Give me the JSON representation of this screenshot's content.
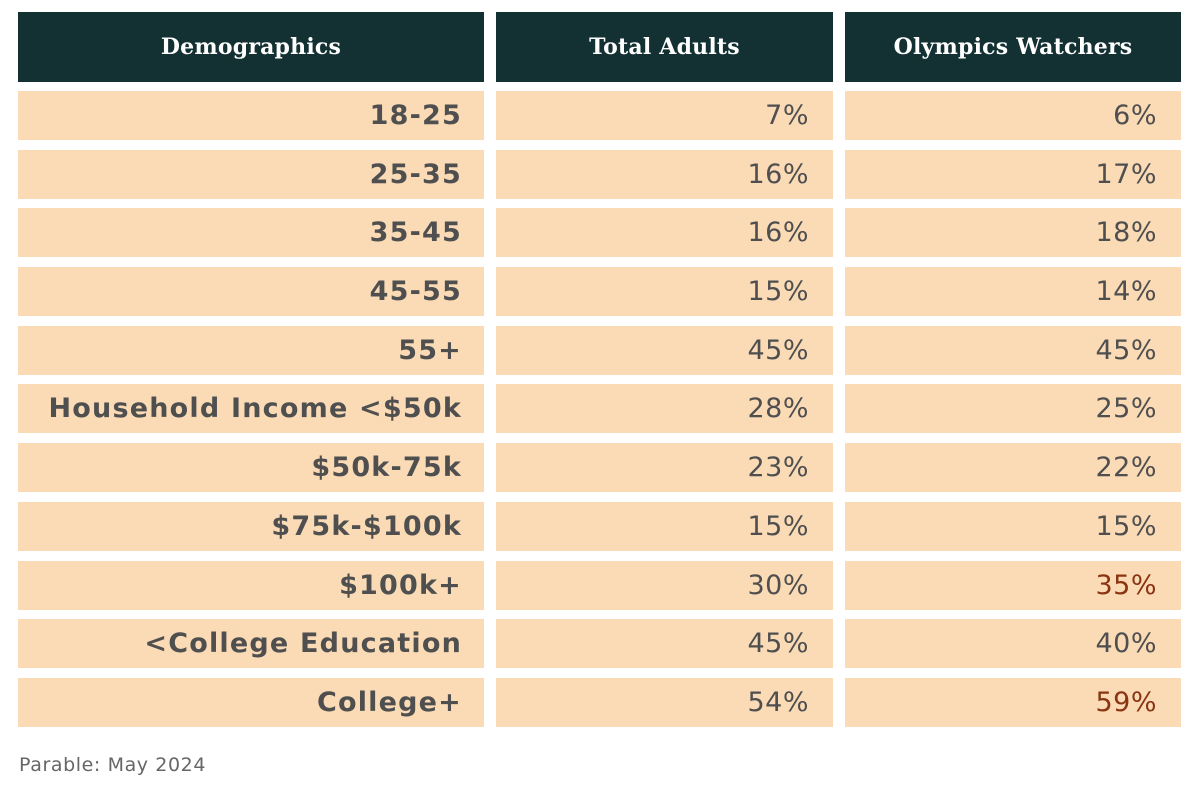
{
  "chart_data": {
    "type": "table",
    "columns": [
      "Demographics",
      "Total Adults",
      "Olympics Watchers"
    ],
    "rows": [
      {
        "label": "18-25",
        "total_adults": "7%",
        "olympics_watchers": "6%",
        "highlight": false
      },
      {
        "label": "25-35",
        "total_adults": "16%",
        "olympics_watchers": "17%",
        "highlight": false
      },
      {
        "label": "35-45",
        "total_adults": "16%",
        "olympics_watchers": "18%",
        "highlight": false
      },
      {
        "label": "45-55",
        "total_adults": "15%",
        "olympics_watchers": "14%",
        "highlight": false
      },
      {
        "label": "55+",
        "total_adults": "45%",
        "olympics_watchers": "45%",
        "highlight": false
      },
      {
        "label": "Household Income <$50k",
        "total_adults": "28%",
        "olympics_watchers": "25%",
        "highlight": false
      },
      {
        "label": "$50k-75k",
        "total_adults": "23%",
        "olympics_watchers": "22%",
        "highlight": false
      },
      {
        "label": "$75k-$100k",
        "total_adults": "15%",
        "olympics_watchers": "15%",
        "highlight": false
      },
      {
        "label": "$100k+",
        "total_adults": "30%",
        "olympics_watchers": "35%",
        "highlight": true
      },
      {
        "label": "<College Education",
        "total_adults": "45%",
        "olympics_watchers": "40%",
        "highlight": false
      },
      {
        "label": "College+",
        "total_adults": "54%",
        "olympics_watchers": "59%",
        "highlight": true
      }
    ],
    "source": "Parable: May 2024"
  },
  "colors": {
    "header_bg": "#133033",
    "cell_bg": "#fadbb6",
    "text": "#4f4f4f",
    "highlight_text": "#8a3412"
  }
}
